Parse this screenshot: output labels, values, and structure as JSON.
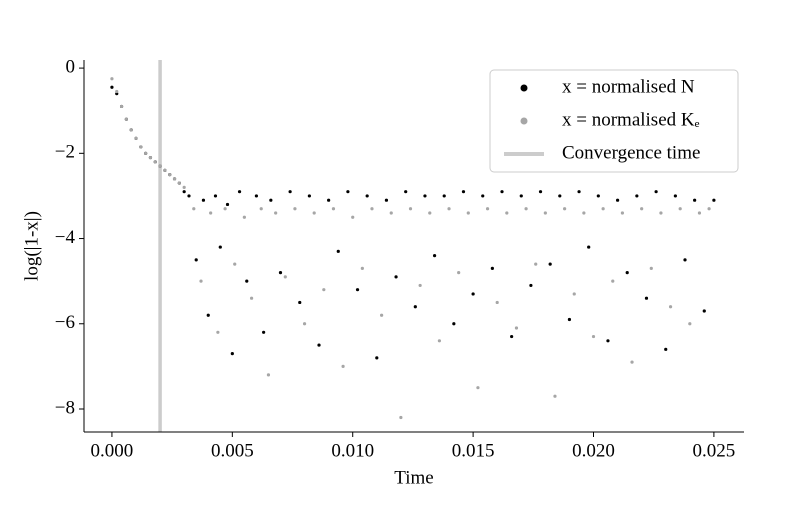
{
  "chart_data": {
    "type": "scatter",
    "x_label": "Time",
    "y_label": "log(|1-x|)",
    "xlim": [
      -0.00116,
      0.02625
    ],
    "ylim": [
      -8.54,
      0.19
    ],
    "xticks": [
      {
        "value": 0,
        "label": "0.000"
      },
      {
        "value": 0.005,
        "label": "0.005"
      },
      {
        "value": 0.01,
        "label": "0.010"
      },
      {
        "value": 0.015,
        "label": "0.015"
      },
      {
        "value": 0.02,
        "label": "0.020"
      },
      {
        "value": 0.025,
        "label": "0.025"
      }
    ],
    "yticks": [
      0,
      {
        "value": -2,
        "label": "−2"
      },
      {
        "value": -4,
        "label": "−4"
      },
      {
        "value": -6,
        "label": "−6"
      },
      {
        "value": -8,
        "label": "−8"
      }
    ],
    "legend_position": "upper right",
    "convergence_time": {
      "label": "Convergence time",
      "x": 0.002,
      "color": "#cccccc"
    },
    "series": [
      {
        "name": "x = normalised N",
        "color": "#000000",
        "x": [
          0,
          0.0002,
          0.0004,
          0.0006,
          0.0008,
          0.001,
          0.0012,
          0.0014,
          0.0016,
          0.0018,
          0.002,
          0.0022,
          0.0024,
          0.0026,
          0.0028,
          0.003,
          0.0032,
          0.0035,
          0.0038,
          0.004,
          0.0043,
          0.0045,
          0.0048,
          0.005,
          0.0053,
          0.0056,
          0.006,
          0.0063,
          0.0066,
          0.007,
          0.0074,
          0.0078,
          0.0082,
          0.0086,
          0.009,
          0.0094,
          0.0098,
          0.0102,
          0.0106,
          0.011,
          0.0114,
          0.0118,
          0.0122,
          0.0126,
          0.013,
          0.0134,
          0.0138,
          0.0142,
          0.0146,
          0.015,
          0.0154,
          0.0158,
          0.0162,
          0.0166,
          0.017,
          0.0174,
          0.0178,
          0.0182,
          0.0186,
          0.019,
          0.0194,
          0.0198,
          0.0202,
          0.0206,
          0.021,
          0.0214,
          0.0218,
          0.0222,
          0.0226,
          0.023,
          0.0234,
          0.0238,
          0.0242,
          0.0246,
          0.025
        ],
        "values": [
          -0.45,
          -0.6,
          -0.9,
          -1.2,
          -1.45,
          -1.65,
          -1.85,
          -2.0,
          -2.1,
          -2.2,
          -2.3,
          -2.4,
          -2.5,
          -2.6,
          -2.7,
          -2.9,
          -3.0,
          -4.5,
          -3.1,
          -5.8,
          -3.0,
          -4.2,
          -3.2,
          -6.7,
          -2.9,
          -5.0,
          -3.0,
          -6.2,
          -3.1,
          -4.8,
          -2.9,
          -5.5,
          -3.0,
          -6.5,
          -3.1,
          -4.3,
          -2.9,
          -5.2,
          -3.0,
          -6.8,
          -3.1,
          -4.9,
          -2.9,
          -5.6,
          -3.0,
          -4.4,
          -3.0,
          -6.0,
          -2.9,
          -5.3,
          -3.0,
          -4.7,
          -2.9,
          -6.3,
          -3.0,
          -5.1,
          -2.9,
          -4.6,
          -3.0,
          -5.9,
          -2.9,
          -4.2,
          -3.0,
          -6.4,
          -3.1,
          -4.8,
          -3.0,
          -5.4,
          -2.9,
          -6.6,
          -3.0,
          -4.5,
          -3.1,
          -5.7,
          -3.1
        ]
      },
      {
        "name": "x = normalised Kₑ",
        "color": "#a6a6a6",
        "x": [
          0,
          0.0002,
          0.0004,
          0.0006,
          0.0008,
          0.001,
          0.0012,
          0.0014,
          0.0016,
          0.0018,
          0.002,
          0.0022,
          0.0024,
          0.0026,
          0.0028,
          0.003,
          0.0034,
          0.0037,
          0.0041,
          0.0044,
          0.0047,
          0.0051,
          0.0055,
          0.0058,
          0.0062,
          0.0065,
          0.0068,
          0.0072,
          0.0076,
          0.008,
          0.0084,
          0.0088,
          0.0092,
          0.0096,
          0.01,
          0.0104,
          0.0108,
          0.0112,
          0.0116,
          0.012,
          0.0124,
          0.0128,
          0.0132,
          0.0136,
          0.014,
          0.0144,
          0.0148,
          0.0152,
          0.0156,
          0.016,
          0.0164,
          0.0168,
          0.0172,
          0.0176,
          0.018,
          0.0184,
          0.0188,
          0.0192,
          0.0196,
          0.02,
          0.0204,
          0.0208,
          0.0212,
          0.0216,
          0.022,
          0.0224,
          0.0228,
          0.0232,
          0.0236,
          0.024,
          0.0244,
          0.0248
        ],
        "values": [
          -0.25,
          -0.55,
          -0.9,
          -1.2,
          -1.45,
          -1.65,
          -1.85,
          -2.0,
          -2.1,
          -2.2,
          -2.3,
          -2.4,
          -2.5,
          -2.6,
          -2.7,
          -2.8,
          -3.3,
          -5.0,
          -3.4,
          -6.2,
          -3.3,
          -4.6,
          -3.5,
          -5.4,
          -3.3,
          -7.2,
          -3.4,
          -4.9,
          -3.3,
          -6.0,
          -3.4,
          -5.2,
          -3.3,
          -7.0,
          -3.5,
          -4.7,
          -3.3,
          -5.8,
          -3.4,
          -8.2,
          -3.3,
          -5.1,
          -3.4,
          -6.4,
          -3.3,
          -4.8,
          -3.4,
          -7.5,
          -3.3,
          -5.5,
          -3.4,
          -6.1,
          -3.3,
          -4.6,
          -3.4,
          -7.7,
          -3.3,
          -5.3,
          -3.4,
          -6.3,
          -3.3,
          -5.0,
          -3.4,
          -6.9,
          -3.3,
          -4.7,
          -3.4,
          -5.6,
          -3.3,
          -6.0,
          -3.4,
          -3.3
        ]
      }
    ]
  }
}
